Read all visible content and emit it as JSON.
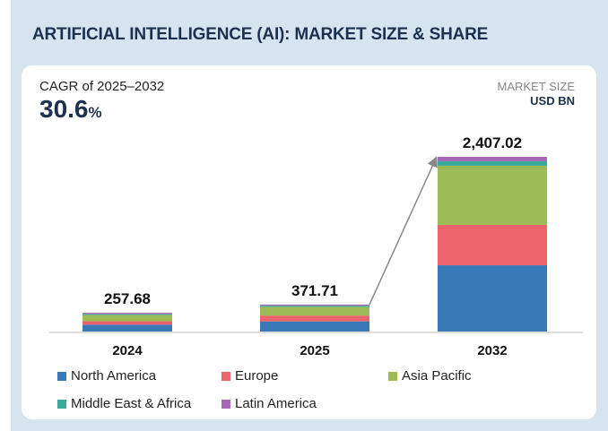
{
  "title": "ARTIFICIAL INTELLIGENCE (AI): MARKET SIZE & SHARE",
  "cagr": {
    "label": "CAGR of 2025–2032",
    "value": "30.6",
    "unit": "%"
  },
  "market_size": {
    "label": "MARKET SIZE",
    "unit": "USD BN"
  },
  "chart_data": {
    "type": "bar",
    "stacked": true,
    "categories": [
      "2024",
      "2025",
      "2032"
    ],
    "totals": [
      "257.68",
      "371.71",
      "2,407.02"
    ],
    "total_values": [
      257.68,
      371.71,
      2407.02
    ],
    "series": [
      {
        "name": "North America",
        "color": "#3a79b8",
        "values": [
          95,
          140,
          913
        ]
      },
      {
        "name": "Europe",
        "color": "#ec636b",
        "values": [
          48,
          80,
          556
        ]
      },
      {
        "name": "Asia Pacific",
        "color": "#9dbb56",
        "values": [
          85,
          120,
          815
        ]
      },
      {
        "name": "Middle East & Africa",
        "color": "#3aa99b",
        "values": [
          15,
          15,
          62
        ]
      },
      {
        "name": "Latin America",
        "color": "#a668b5",
        "values": [
          14.68,
          16.71,
          61.02
        ]
      }
    ],
    "ylim": [
      0,
      2407.02
    ],
    "grid": false,
    "legend_position": "bottom",
    "annotation": "arrow from 2025 to 2032"
  }
}
